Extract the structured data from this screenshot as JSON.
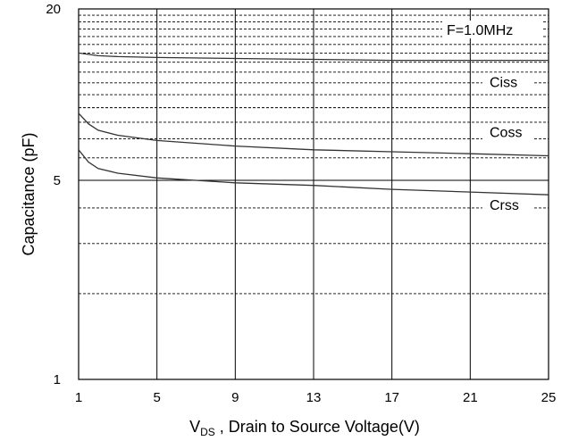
{
  "chart_data": {
    "type": "line",
    "xlabel": "V",
    "xlabel_sub": "DS",
    "xlabel_rest": " , Drain to Source Voltage(V)",
    "ylabel": "Capacitance (pF)",
    "xlim": [
      1,
      25
    ],
    "ylim": [
      1,
      20
    ],
    "y_scale": "log",
    "x_ticks": [
      1,
      5,
      9,
      13,
      17,
      21,
      25
    ],
    "x_tick_labels": [
      "1",
      "5",
      "9",
      "13",
      "17",
      "21",
      "25"
    ],
    "y_tick_labels": [
      {
        "value": 20,
        "label": "20"
      },
      {
        "value": 5,
        "label": "5"
      },
      {
        "value": 1,
        "label": "1"
      }
    ],
    "grid": true,
    "annotation": "F=1.0MHz",
    "series": [
      {
        "name": "Ciss",
        "x": [
          1,
          2,
          3,
          5,
          9,
          13,
          17,
          21,
          25
        ],
        "values": [
          14.0,
          13.7,
          13.6,
          13.5,
          13.4,
          13.3,
          13.2,
          13.2,
          13.2
        ]
      },
      {
        "name": "Coss",
        "x": [
          1,
          1.5,
          2,
          3,
          5,
          9,
          13,
          17,
          21,
          25
        ],
        "values": [
          8.6,
          7.9,
          7.5,
          7.2,
          6.9,
          6.6,
          6.4,
          6.3,
          6.2,
          6.1
        ]
      },
      {
        "name": "Crss",
        "x": [
          1,
          1.5,
          2,
          3,
          5,
          9,
          13,
          17,
          21,
          25
        ],
        "values": [
          6.4,
          5.8,
          5.5,
          5.3,
          5.1,
          4.9,
          4.8,
          4.65,
          4.55,
          4.45
        ]
      }
    ]
  }
}
